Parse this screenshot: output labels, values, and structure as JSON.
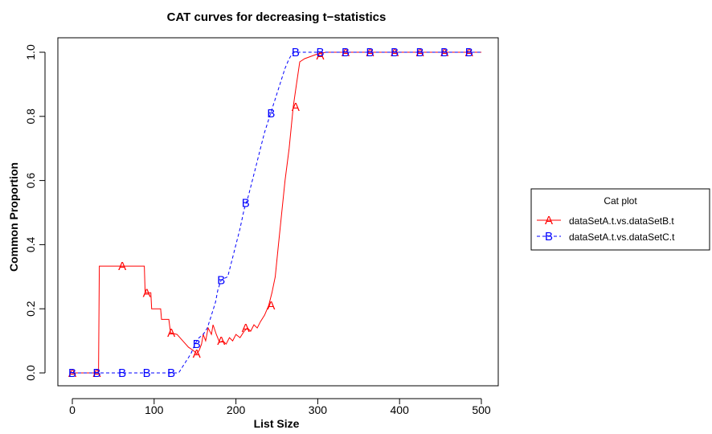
{
  "chart_data": {
    "type": "line",
    "title": "CAT curves for decreasing t−statistics",
    "xlabel": "List Size",
    "ylabel": "Common Proportion",
    "xlim": [
      0,
      500
    ],
    "ylim": [
      0,
      1
    ],
    "xticks": [
      0,
      100,
      200,
      300,
      400,
      500
    ],
    "yticks": [
      0.0,
      0.2,
      0.4,
      0.6,
      0.8,
      1.0
    ],
    "xtick_labels": [
      "0",
      "100",
      "200",
      "300",
      "400",
      "500"
    ],
    "ytick_labels": [
      "0.0",
      "0.2",
      "0.4",
      "0.6",
      "0.8",
      "1.0"
    ],
    "grid": false,
    "legend": {
      "title": "Cat plot",
      "placement": "right",
      "entries": [
        "dataSetA.t.vs.dataSetB.t",
        "dataSetA.t.vs.dataSetC.t"
      ]
    },
    "series": [
      {
        "name": "dataSetA.t.vs.dataSetB.t",
        "color": "#ff0000",
        "line_style": "solid",
        "marker_label": "A",
        "points": [
          [
            0,
            0
          ],
          [
            32,
            0
          ],
          [
            33,
            0.333
          ],
          [
            88,
            0.333
          ],
          [
            89,
            0.25
          ],
          [
            96,
            0.25
          ],
          [
            97,
            0.2
          ],
          [
            108,
            0.2
          ],
          [
            109,
            0.167
          ],
          [
            118,
            0.167
          ],
          [
            120,
            0.125
          ],
          [
            128,
            0.12
          ],
          [
            135,
            0.1
          ],
          [
            142,
            0.08
          ],
          [
            148,
            0.07
          ],
          [
            152,
            0.06
          ],
          [
            155,
            0.07
          ],
          [
            158,
            0.09
          ],
          [
            160,
            0.12
          ],
          [
            163,
            0.1
          ],
          [
            166,
            0.14
          ],
          [
            170,
            0.12
          ],
          [
            172,
            0.15
          ],
          [
            176,
            0.12
          ],
          [
            180,
            0.095
          ],
          [
            184,
            0.1
          ],
          [
            188,
            0.09
          ],
          [
            192,
            0.11
          ],
          [
            196,
            0.1
          ],
          [
            200,
            0.12
          ],
          [
            205,
            0.11
          ],
          [
            210,
            0.13
          ],
          [
            214,
            0.14
          ],
          [
            218,
            0.13
          ],
          [
            222,
            0.15
          ],
          [
            226,
            0.14
          ],
          [
            230,
            0.16
          ],
          [
            235,
            0.18
          ],
          [
            240,
            0.21
          ],
          [
            244,
            0.25
          ],
          [
            248,
            0.3
          ],
          [
            252,
            0.4
          ],
          [
            256,
            0.5
          ],
          [
            260,
            0.6
          ],
          [
            265,
            0.7
          ],
          [
            270,
            0.83
          ],
          [
            274,
            0.9
          ],
          [
            278,
            0.97
          ],
          [
            284,
            0.98
          ],
          [
            300,
            0.995
          ],
          [
            310,
            1.0
          ],
          [
            500,
            1.0
          ]
        ],
        "marker_x": [
          0,
          30,
          61,
          91,
          121,
          152,
          182,
          212,
          243,
          273,
          303,
          334,
          364,
          394,
          425,
          455,
          485
        ],
        "marker_y": [
          0,
          0,
          0.333,
          0.25,
          0.125,
          0.06,
          0.1,
          0.14,
          0.21,
          0.83,
          0.99,
          1.0,
          1.0,
          1.0,
          1.0,
          1.0,
          1.0
        ]
      },
      {
        "name": "dataSetA.t.vs.dataSetC.t",
        "color": "#0000ff",
        "line_style": "dashed",
        "marker_label": "B",
        "points": [
          [
            0,
            0
          ],
          [
            130,
            0
          ],
          [
            135,
            0.02
          ],
          [
            140,
            0.04
          ],
          [
            145,
            0.06
          ],
          [
            150,
            0.09
          ],
          [
            155,
            0.11
          ],
          [
            160,
            0.12
          ],
          [
            165,
            0.14
          ],
          [
            170,
            0.18
          ],
          [
            175,
            0.22
          ],
          [
            178,
            0.26
          ],
          [
            182,
            0.29
          ],
          [
            190,
            0.3
          ],
          [
            195,
            0.35
          ],
          [
            200,
            0.4
          ],
          [
            205,
            0.45
          ],
          [
            210,
            0.51
          ],
          [
            215,
            0.55
          ],
          [
            220,
            0.6
          ],
          [
            225,
            0.65
          ],
          [
            230,
            0.7
          ],
          [
            235,
            0.75
          ],
          [
            240,
            0.79
          ],
          [
            245,
            0.83
          ],
          [
            250,
            0.87
          ],
          [
            255,
            0.91
          ],
          [
            260,
            0.95
          ],
          [
            265,
            0.98
          ],
          [
            270,
            1.0
          ],
          [
            500,
            1.0
          ]
        ],
        "marker_x": [
          0,
          30,
          61,
          91,
          121,
          152,
          182,
          212,
          243,
          273,
          303,
          334,
          364,
          394,
          425,
          455,
          485
        ],
        "marker_y": [
          0,
          0,
          0,
          0,
          0,
          0.09,
          0.29,
          0.53,
          0.81,
          1.0,
          1.0,
          1.0,
          1.0,
          1.0,
          1.0,
          1.0,
          1.0
        ]
      }
    ]
  }
}
